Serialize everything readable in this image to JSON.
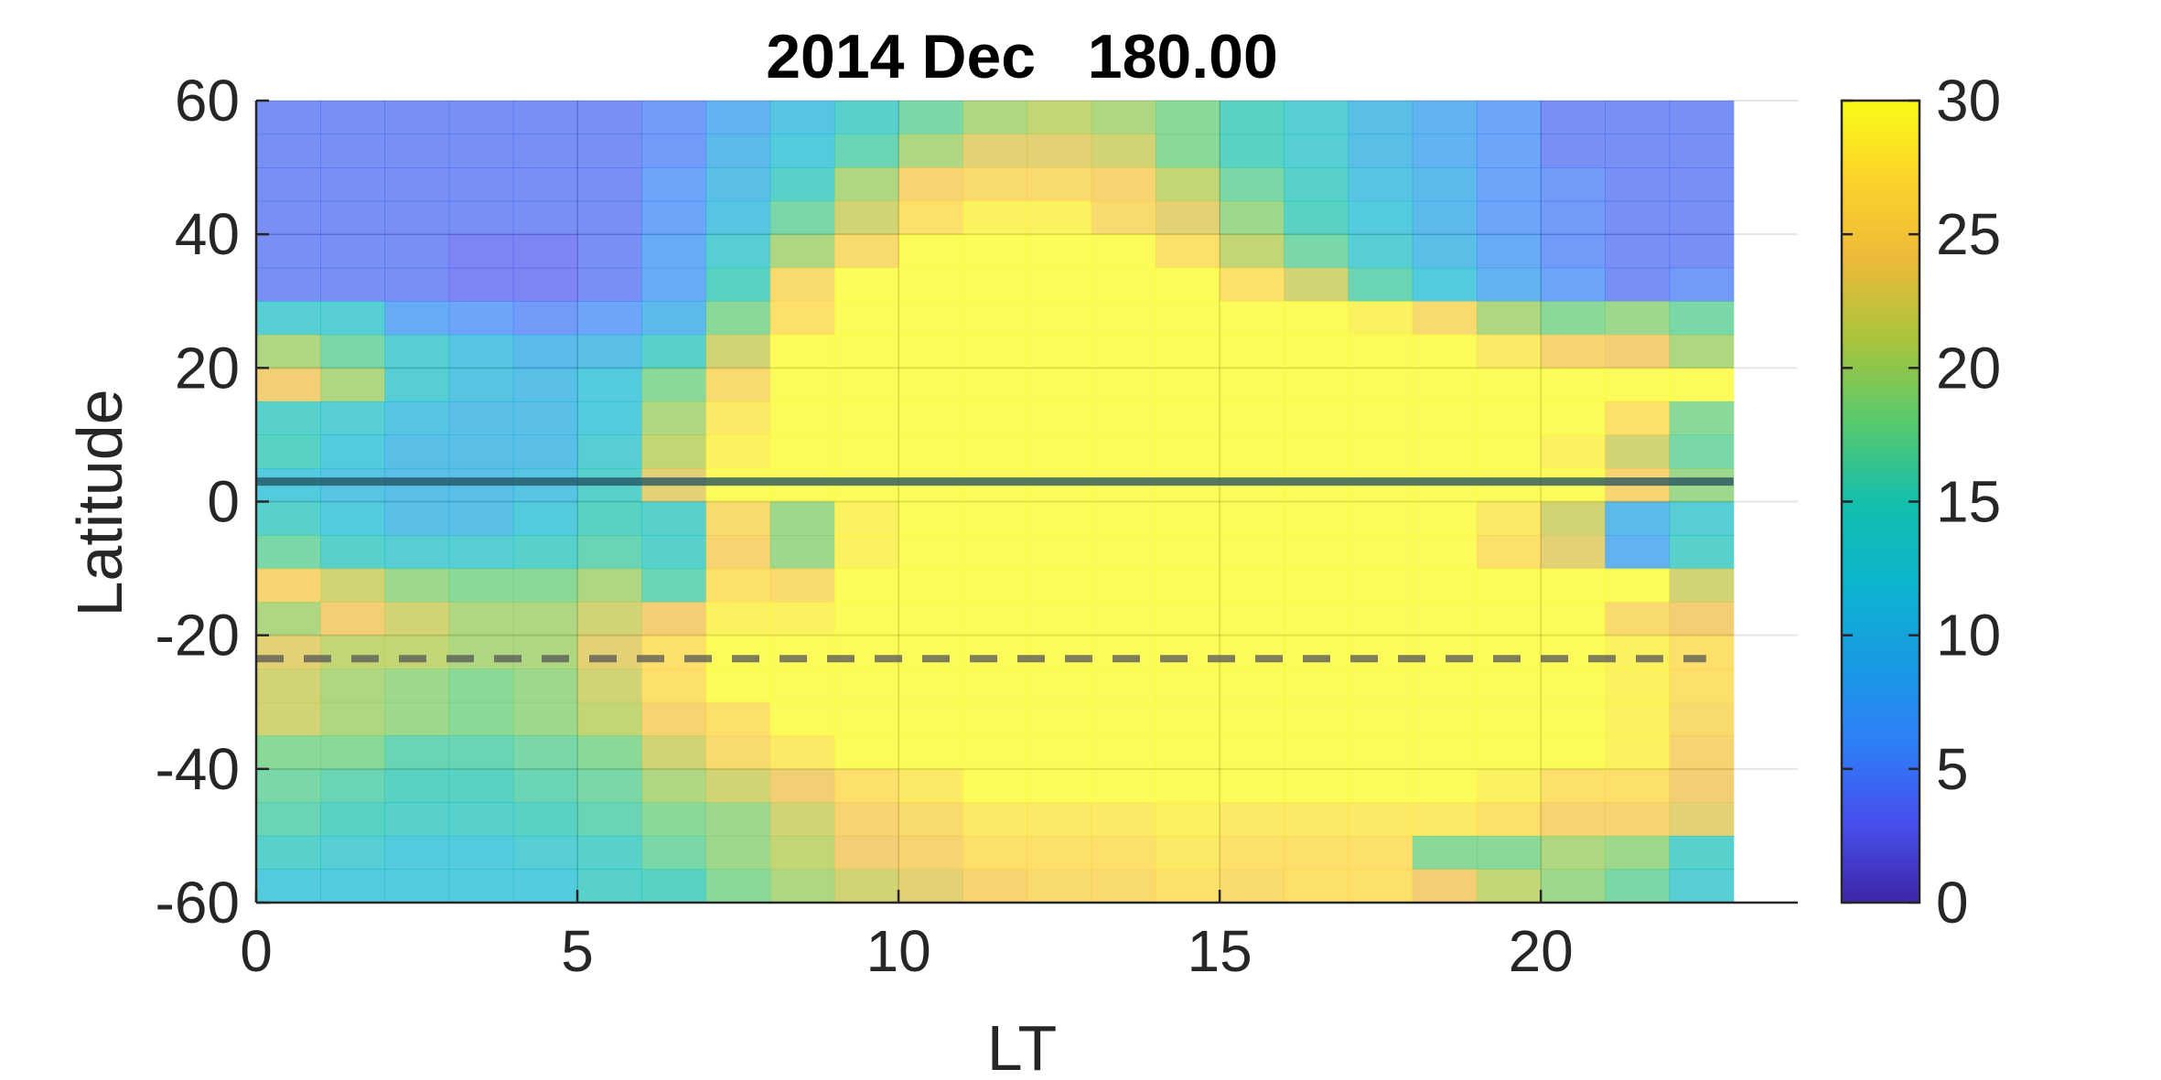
{
  "chart_data": {
    "type": "heatmap",
    "title": "2014 Dec   180.00",
    "xlabel": "LT",
    "ylabel": "Latitude",
    "xlim": [
      0,
      24
    ],
    "ylim": [
      -60,
      60
    ],
    "x_data_range": [
      0,
      23
    ],
    "xticks": [
      "0",
      "5",
      "10",
      "15",
      "20"
    ],
    "yticks": [
      "60",
      "40",
      "20",
      "0",
      "-20",
      "-40",
      "-60"
    ],
    "grid": true,
    "colorbar": {
      "clim": [
        0,
        30
      ],
      "ticks": [
        "30",
        "25",
        "20",
        "15",
        "10",
        "5",
        "0"
      ],
      "colormap": "parula"
    },
    "lines": [
      {
        "style": "solid",
        "y": 3,
        "color": "#1f4e5e"
      },
      {
        "style": "dashed",
        "y": -23.5,
        "color": "#555555"
      }
    ],
    "lt_columns": [
      0.5,
      1.5,
      2.5,
      3.5,
      4.5,
      5.5,
      6.5,
      7.5,
      8.5,
      9.5,
      10.5,
      11.5,
      12.5,
      13.5,
      14.5,
      15.5,
      16.5,
      17.5,
      18.5,
      19.5,
      20.5,
      21.5,
      22.5
    ],
    "latitude_rows": [
      57.5,
      52.5,
      47.5,
      42.5,
      37.5,
      32.5,
      27.5,
      22.5,
      17.5,
      12.5,
      7.5,
      2.5,
      -2.5,
      -7.5,
      -12.5,
      -17.5,
      -22.5,
      -27.5,
      -32.5,
      -37.5,
      -42.5,
      -47.5,
      -52.5,
      -57.5
    ],
    "values": [
      [
        4,
        4,
        4,
        4,
        4,
        4,
        5,
        8,
        11,
        14,
        17,
        20,
        21,
        20,
        18,
        15,
        13,
        10,
        8,
        6,
        4,
        4,
        4
      ],
      [
        4,
        4,
        4,
        4,
        4,
        4,
        5,
        9,
        12,
        16,
        20,
        23,
        23,
        22,
        18,
        15,
        13,
        10,
        8,
        6,
        4,
        4,
        4
      ],
      [
        4,
        4,
        4,
        4,
        4,
        4,
        6,
        10,
        14,
        20,
        25,
        26,
        26,
        25,
        21,
        17,
        14,
        11,
        9,
        6,
        5,
        4,
        4
      ],
      [
        4,
        4,
        4,
        4,
        4,
        4,
        6,
        11,
        17,
        22,
        27,
        29,
        29,
        26,
        23,
        19,
        15,
        12,
        9,
        6,
        5,
        4,
        4
      ],
      [
        4,
        4,
        4,
        3,
        3,
        4,
        7,
        13,
        20,
        26,
        30,
        30,
        30,
        30,
        27,
        21,
        17,
        13,
        10,
        7,
        5,
        4,
        4
      ],
      [
        4,
        4,
        4,
        3,
        3,
        4,
        7,
        15,
        26,
        30,
        30,
        30,
        30,
        30,
        30,
        27,
        22,
        16,
        12,
        8,
        6,
        4,
        5
      ],
      [
        13,
        13,
        7,
        6,
        5,
        6,
        9,
        18,
        27,
        30,
        30,
        30,
        30,
        30,
        30,
        30,
        30,
        29,
        26,
        20,
        18,
        19,
        17
      ],
      [
        20,
        17,
        13,
        11,
        9,
        10,
        14,
        22,
        30,
        30,
        30,
        30,
        30,
        30,
        30,
        30,
        30,
        30,
        30,
        28,
        25,
        24,
        20
      ],
      [
        24,
        20,
        13,
        11,
        10,
        12,
        18,
        26,
        30,
        30,
        30,
        30,
        30,
        30,
        30,
        30,
        30,
        30,
        30,
        30,
        30,
        30,
        30
      ],
      [
        14,
        13,
        11,
        10,
        10,
        12,
        20,
        28,
        30,
        30,
        30,
        30,
        30,
        30,
        30,
        30,
        30,
        30,
        30,
        30,
        30,
        27,
        18
      ],
      [
        15,
        12,
        10,
        10,
        10,
        13,
        21,
        29,
        30,
        30,
        30,
        30,
        30,
        30,
        30,
        30,
        30,
        30,
        30,
        30,
        29,
        22,
        17
      ],
      [
        12,
        11,
        10,
        10,
        11,
        14,
        23,
        30,
        30,
        30,
        30,
        30,
        30,
        30,
        30,
        30,
        30,
        30,
        30,
        30,
        30,
        25,
        19
      ],
      [
        14,
        12,
        10,
        10,
        12,
        15,
        14,
        26,
        19,
        29,
        30,
        30,
        30,
        30,
        30,
        30,
        30,
        30,
        30,
        28,
        22,
        9,
        13
      ],
      [
        17,
        14,
        13,
        13,
        14,
        16,
        14,
        25,
        19,
        29,
        30,
        30,
        30,
        30,
        30,
        30,
        30,
        30,
        30,
        27,
        23,
        8,
        14
      ],
      [
        25,
        22,
        19,
        18,
        18,
        20,
        16,
        27,
        26,
        30,
        30,
        30,
        30,
        30,
        30,
        30,
        30,
        30,
        30,
        30,
        30,
        30,
        22
      ],
      [
        20,
        24,
        22,
        20,
        20,
        22,
        24,
        29,
        29,
        30,
        30,
        30,
        30,
        30,
        30,
        30,
        30,
        30,
        30,
        30,
        30,
        26,
        24
      ],
      [
        23,
        21,
        21,
        20,
        20,
        23,
        27,
        30,
        30,
        30,
        30,
        30,
        30,
        30,
        30,
        30,
        30,
        30,
        30,
        30,
        30,
        29,
        27
      ],
      [
        22,
        20,
        19,
        18,
        19,
        22,
        27,
        30,
        30,
        30,
        30,
        30,
        30,
        30,
        30,
        30,
        30,
        30,
        30,
        30,
        30,
        29,
        27
      ],
      [
        22,
        20,
        19,
        18,
        19,
        21,
        25,
        27,
        30,
        30,
        30,
        30,
        30,
        30,
        30,
        30,
        30,
        30,
        30,
        30,
        30,
        29,
        26
      ],
      [
        18,
        18,
        16,
        16,
        17,
        18,
        22,
        26,
        28,
        30,
        30,
        30,
        30,
        30,
        30,
        30,
        30,
        30,
        30,
        30,
        30,
        29,
        25
      ],
      [
        17,
        16,
        15,
        15,
        16,
        17,
        20,
        22,
        24,
        27,
        28,
        30,
        30,
        30,
        30,
        30,
        30,
        30,
        30,
        29,
        27,
        27,
        24
      ],
      [
        16,
        15,
        14,
        14,
        15,
        16,
        18,
        19,
        22,
        25,
        26,
        28,
        28,
        28,
        29,
        28,
        28,
        28,
        28,
        27,
        25,
        25,
        23
      ],
      [
        14,
        13,
        12,
        12,
        13,
        14,
        17,
        19,
        21,
        24,
        25,
        27,
        27,
        27,
        28,
        27,
        27,
        27,
        18,
        18,
        20,
        19,
        14
      ],
      [
        12,
        12,
        12,
        12,
        12,
        14,
        15,
        18,
        20,
        22,
        23,
        25,
        26,
        26,
        27,
        26,
        27,
        27,
        24,
        21,
        19,
        17,
        13
      ]
    ]
  }
}
